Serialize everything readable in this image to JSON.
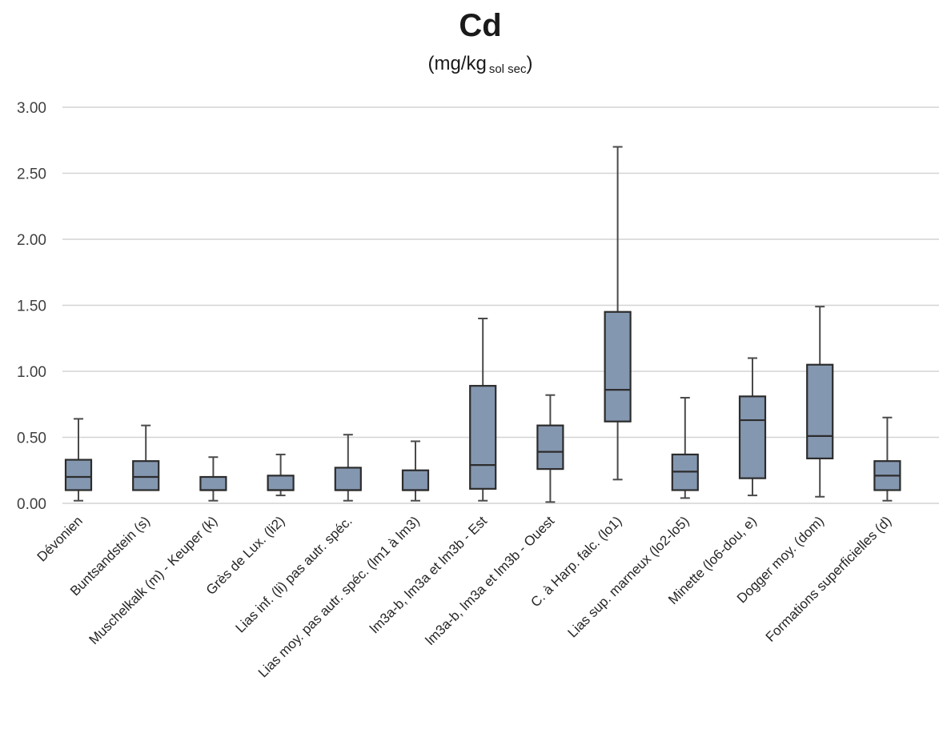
{
  "chart_data": {
    "type": "boxplot",
    "title": "Cd",
    "subtitle_main": "(mg/kg",
    "subtitle_sub": "sol sec",
    "subtitle_close": ")",
    "ylim": [
      0,
      3
    ],
    "yticks": [
      "0.00",
      "0.50",
      "1.00",
      "1.50",
      "2.00",
      "2.50",
      "3.00"
    ],
    "grid": true,
    "box_color": "#8497b0",
    "categories": [
      "Dévonien",
      "Buntsandstein (s)",
      "Muschelkalk (m) - Keuper (k)",
      "Grès de Lux. (li2)",
      "Lias inf. (li) pas autr. spéc.",
      "Lias moy. pas autr. spéc. (lm1 à lm3)",
      "lm3a-b, lm3a et lm3b - Est",
      "lm3a-b, lm3a et lm3b - Ouest",
      "C. à Harp. falc. (lo1)",
      "Lias sup. marneux (lo2-lo5)",
      "Minette (lo6-dou, e)",
      "Dogger moy. (dom)",
      "Formations superficielles (d)"
    ],
    "boxes": [
      {
        "min": 0.02,
        "q1": 0.1,
        "median": 0.2,
        "q3": 0.33,
        "max": 0.64
      },
      {
        "min": 0.1,
        "q1": 0.1,
        "median": 0.2,
        "q3": 0.32,
        "max": 0.59
      },
      {
        "min": 0.02,
        "q1": 0.1,
        "median": 0.1,
        "q3": 0.2,
        "max": 0.35
      },
      {
        "min": 0.06,
        "q1": 0.1,
        "median": 0.1,
        "q3": 0.21,
        "max": 0.37
      },
      {
        "min": 0.02,
        "q1": 0.1,
        "median": 0.1,
        "q3": 0.27,
        "max": 0.52
      },
      {
        "min": 0.02,
        "q1": 0.1,
        "median": 0.1,
        "q3": 0.25,
        "max": 0.47
      },
      {
        "min": 0.02,
        "q1": 0.11,
        "median": 0.29,
        "q3": 0.89,
        "max": 1.4
      },
      {
        "min": 0.01,
        "q1": 0.26,
        "median": 0.39,
        "q3": 0.59,
        "max": 0.82
      },
      {
        "min": 0.18,
        "q1": 0.62,
        "median": 0.86,
        "q3": 1.45,
        "max": 2.7
      },
      {
        "min": 0.04,
        "q1": 0.1,
        "median": 0.24,
        "q3": 0.37,
        "max": 0.8
      },
      {
        "min": 0.06,
        "q1": 0.19,
        "median": 0.63,
        "q3": 0.81,
        "max": 1.1
      },
      {
        "min": 0.05,
        "q1": 0.34,
        "median": 0.51,
        "q3": 1.05,
        "max": 1.49
      },
      {
        "min": 0.02,
        "q1": 0.1,
        "median": 0.21,
        "q3": 0.32,
        "max": 0.65
      }
    ]
  }
}
